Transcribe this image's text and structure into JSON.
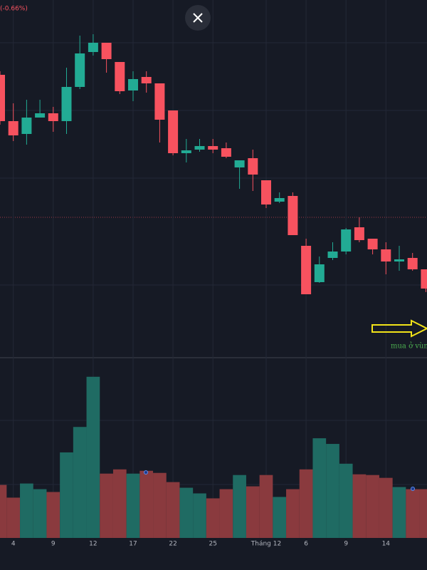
{
  "chart_data": [
    {
      "type": "candlestick",
      "subtitle": "(-0.66%)",
      "annotation": "mua ở vùng",
      "categories": [
        null,
        "4",
        null,
        null,
        "9",
        null,
        null,
        "12",
        null,
        null,
        "17",
        null,
        null,
        "22",
        null,
        null,
        "25",
        null,
        null,
        null,
        "Tháng 12",
        null,
        null,
        "6",
        null,
        null,
        "9",
        null,
        null,
        "14",
        null,
        null,
        null
      ],
      "open": [
        395,
        330,
        312,
        335,
        341,
        330,
        378,
        427,
        440,
        413,
        373,
        392,
        383,
        345,
        285,
        290,
        295,
        292,
        265,
        278,
        247,
        217,
        225,
        155,
        104,
        138,
        147,
        181,
        165,
        150,
        133,
        138,
        122
      ],
      "high": [
        400,
        355,
        360,
        360,
        350,
        405,
        450,
        452,
        440,
        413,
        400,
        400,
        383,
        345,
        305,
        305,
        305,
        300,
        275,
        290,
        247,
        230,
        230,
        165,
        140,
        160,
        180,
        195,
        165,
        160,
        155,
        145,
        122
      ],
      "low": [
        325,
        302,
        297,
        335,
        315,
        312,
        375,
        422,
        398,
        368,
        358,
        370,
        300,
        282,
        272,
        287,
        285,
        278,
        235,
        232,
        208,
        215,
        170,
        87,
        103,
        135,
        143,
        160,
        143,
        115,
        120,
        120,
        90
      ],
      "close": [
        330,
        310,
        335,
        341,
        330,
        378,
        425,
        440,
        417,
        372,
        389,
        383,
        332,
        285,
        289,
        295,
        290,
        280,
        275,
        255,
        213,
        222,
        170,
        87,
        129,
        147,
        178,
        163,
        150,
        133,
        136,
        122,
        95
      ],
      "ylim": [
        0,
        500
      ],
      "up_color": "#22ab94",
      "down_color": "#f7525f"
    },
    {
      "type": "bar",
      "values": [
        75,
        57,
        77,
        69,
        65,
        121,
        157,
        228,
        91,
        97,
        91,
        95,
        92,
        79,
        71,
        63,
        56,
        69,
        89,
        73,
        89,
        58,
        69,
        97,
        141,
        133,
        105,
        90,
        89,
        85,
        72,
        69,
        69
      ],
      "ylim": [
        0,
        255
      ],
      "up_color": "#1f6b63",
      "down_color": "#8a3a3e"
    }
  ]
}
